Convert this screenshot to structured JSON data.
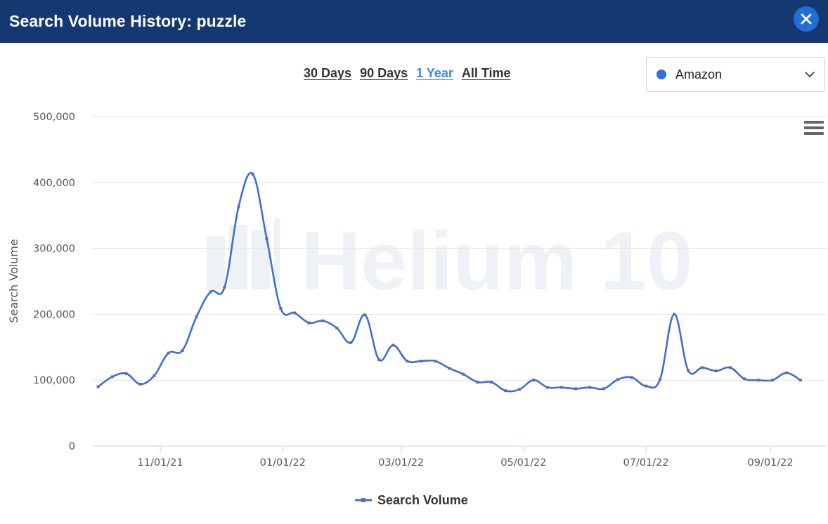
{
  "header": {
    "title": "Search Volume History: puzzle",
    "close_icon": "close-icon"
  },
  "range_tabs": [
    {
      "label": "30 Days",
      "active": false
    },
    {
      "label": "90 Days",
      "active": false
    },
    {
      "label": "1 Year",
      "active": true
    },
    {
      "label": "All Time",
      "active": false
    }
  ],
  "marketplace": {
    "selected": "Amazon",
    "dot_color": "#2f6fe0",
    "icon": "chevron-down-icon"
  },
  "menu": {
    "icon": "hamburger-menu-icon"
  },
  "watermark": "Helium 10",
  "colors": {
    "header_bg": "#14386f",
    "accent": "#3b86e8",
    "series": "#3b6fd6",
    "close_bg": "#1f6fd6"
  },
  "chart_data": {
    "type": "line",
    "title": "",
    "xlabel": "",
    "ylabel": "Search Volume",
    "ylim": [
      0,
      500000
    ],
    "y_ticks": [
      0,
      100000,
      200000,
      300000,
      400000,
      500000
    ],
    "y_tick_labels": [
      "0",
      "100,000",
      "200,000",
      "300,000",
      "400,000",
      "500,000"
    ],
    "x_ticks": [
      "2021-11-01",
      "2022-01-01",
      "2022-03-01",
      "2022-05-01",
      "2022-07-01",
      "2022-09-01"
    ],
    "x_tick_labels": [
      "11/01/21",
      "01/01/22",
      "03/01/22",
      "05/01/22",
      "07/01/22",
      "09/01/22"
    ],
    "x_range": [
      "2021-09-28",
      "2022-09-29"
    ],
    "grid": true,
    "legend": "bottom-center",
    "series": [
      {
        "name": "Search Volume",
        "color": "#3b6fd6",
        "points": [
          [
            "2021-10-01",
            90000
          ],
          [
            "2021-10-08",
            105000
          ],
          [
            "2021-10-15",
            110000
          ],
          [
            "2021-10-22",
            94000
          ],
          [
            "2021-10-29",
            107000
          ],
          [
            "2021-11-05",
            141000
          ],
          [
            "2021-11-12",
            145000
          ],
          [
            "2021-11-19",
            196000
          ],
          [
            "2021-11-26",
            234000
          ],
          [
            "2021-12-03",
            241000
          ],
          [
            "2021-12-10",
            363000
          ],
          [
            "2021-12-17",
            413000
          ],
          [
            "2021-12-24",
            315000
          ],
          [
            "2021-12-31",
            209000
          ],
          [
            "2022-01-07",
            202000
          ],
          [
            "2022-01-14",
            187000
          ],
          [
            "2022-01-21",
            190000
          ],
          [
            "2022-01-28",
            179000
          ],
          [
            "2022-02-04",
            157000
          ],
          [
            "2022-02-11",
            199000
          ],
          [
            "2022-02-18",
            131000
          ],
          [
            "2022-02-25",
            153000
          ],
          [
            "2022-03-04",
            129000
          ],
          [
            "2022-03-11",
            129000
          ],
          [
            "2022-03-18",
            129000
          ],
          [
            "2022-03-25",
            118000
          ],
          [
            "2022-04-01",
            109000
          ],
          [
            "2022-04-08",
            97000
          ],
          [
            "2022-04-15",
            97000
          ],
          [
            "2022-04-22",
            84000
          ],
          [
            "2022-04-29",
            86000
          ],
          [
            "2022-05-06",
            100000
          ],
          [
            "2022-05-13",
            89000
          ],
          [
            "2022-05-20",
            89000
          ],
          [
            "2022-05-27",
            87000
          ],
          [
            "2022-06-03",
            89000
          ],
          [
            "2022-06-10",
            87000
          ],
          [
            "2022-06-17",
            101000
          ],
          [
            "2022-06-24",
            104000
          ],
          [
            "2022-07-01",
            91000
          ],
          [
            "2022-07-08",
            101000
          ],
          [
            "2022-07-15",
            200000
          ],
          [
            "2022-07-22",
            115000
          ],
          [
            "2022-07-29",
            119000
          ],
          [
            "2022-08-05",
            114000
          ],
          [
            "2022-08-12",
            119000
          ],
          [
            "2022-08-19",
            102000
          ],
          [
            "2022-08-26",
            100000
          ],
          [
            "2022-09-02",
            100000
          ],
          [
            "2022-09-09",
            111000
          ],
          [
            "2022-09-16",
            100000
          ]
        ]
      }
    ]
  }
}
